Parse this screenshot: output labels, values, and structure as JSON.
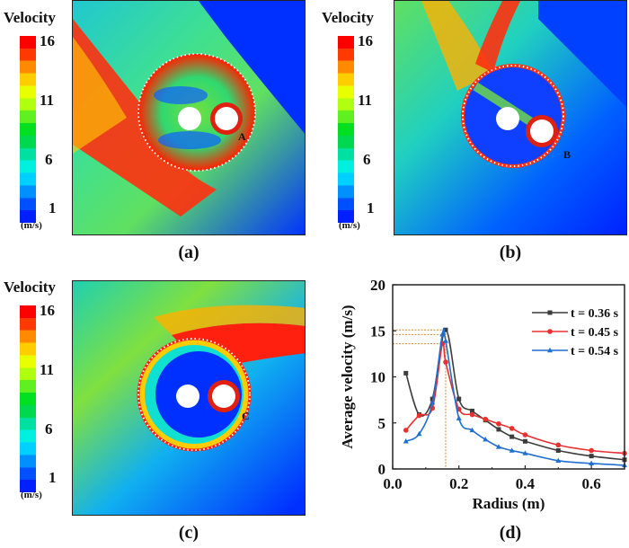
{
  "colorbar": {
    "title": "Velocity",
    "ticks": [
      "16",
      "11",
      "6",
      "1"
    ],
    "unit": "(m/s)",
    "range": [
      1,
      16
    ],
    "colors": [
      "#ff0000",
      "#ff3a00",
      "#ff8a00",
      "#ffcc00",
      "#e8ff00",
      "#b0ff10",
      "#60f020",
      "#00e020",
      "#00d850",
      "#00e0a0",
      "#00f0e0",
      "#00d0ff",
      "#0090ff",
      "#0050ff",
      "#0020ff"
    ]
  },
  "panels": [
    {
      "label": "(a)",
      "marker": "A",
      "time": "t = 0.36 s"
    },
    {
      "label": "(b)",
      "marker": "B",
      "time": "t = 0.45 s"
    },
    {
      "label": "(c)",
      "marker": "C",
      "time": "t = 0.54 s"
    }
  ],
  "chart_label": "(d)",
  "chart_data": {
    "type": "line",
    "title": "",
    "xlabel": "Radius (m)",
    "ylabel": "Average velocity (m/s)",
    "xlim": [
      0.0,
      0.7
    ],
    "ylim": [
      0,
      20
    ],
    "xticks": [
      "0.0",
      "0.2",
      "0.4",
      "0.6"
    ],
    "xtick_values": [
      0.0,
      0.2,
      0.4,
      0.6
    ],
    "yticks": [
      "0",
      "5",
      "10",
      "15",
      "20"
    ],
    "ytick_values": [
      0,
      5,
      10,
      15,
      20
    ],
    "legend_position": "top-right",
    "series": [
      {
        "name": "t = 0.36 s",
        "color": "#3c3c3c",
        "marker": "square",
        "x": [
          0.04,
          0.08,
          0.12,
          0.16,
          0.2,
          0.24,
          0.28,
          0.32,
          0.36,
          0.4,
          0.5,
          0.6,
          0.7
        ],
        "y": [
          10.4,
          5.9,
          7.6,
          15.1,
          7.6,
          6.3,
          5.3,
          4.3,
          3.5,
          3.0,
          2.0,
          1.4,
          1.0
        ]
      },
      {
        "name": "t = 0.45 s",
        "color": "#e8302e",
        "marker": "circle",
        "x": [
          0.04,
          0.08,
          0.12,
          0.15,
          0.16,
          0.2,
          0.24,
          0.28,
          0.32,
          0.36,
          0.4,
          0.5,
          0.6,
          0.7
        ],
        "y": [
          4.2,
          5.8,
          6.6,
          13.6,
          11.6,
          6.5,
          5.9,
          5.4,
          4.9,
          4.4,
          3.7,
          2.6,
          2.0,
          1.7
        ]
      },
      {
        "name": "t = 0.54 s",
        "color": "#1f6fd0",
        "marker": "triangle",
        "x": [
          0.04,
          0.08,
          0.12,
          0.15,
          0.16,
          0.2,
          0.24,
          0.28,
          0.32,
          0.36,
          0.4,
          0.5,
          0.6,
          0.7
        ],
        "y": [
          3.0,
          3.8,
          7.2,
          14.6,
          13.9,
          5.5,
          4.2,
          3.2,
          2.4,
          2.0,
          1.7,
          0.9,
          0.6,
          0.4
        ]
      }
    ],
    "annotations": {
      "guide_x": 0.16,
      "guide_y": [
        15.1,
        14.6,
        13.6
      ],
      "guide_color": "#d08a30"
    }
  }
}
